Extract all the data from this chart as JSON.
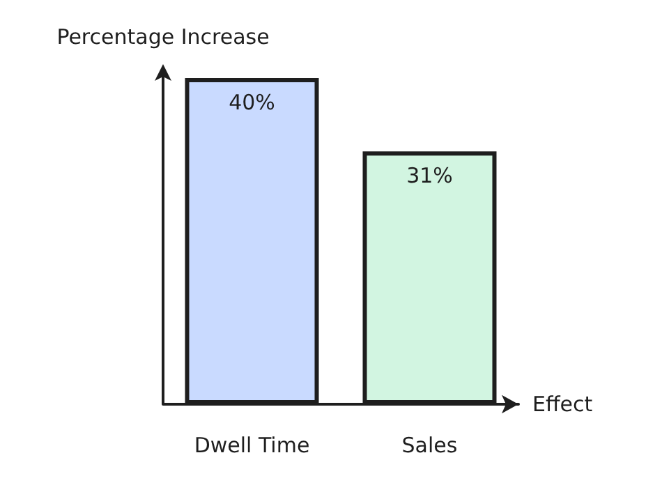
{
  "chart_data": {
    "type": "bar",
    "xlabel": "Effect",
    "ylabel": "Percentage Increase",
    "categories": [
      "Dwell Time",
      "Sales"
    ],
    "values": [
      40,
      31
    ],
    "colors": [
      "#c9daff",
      "#d2f5e1"
    ],
    "value_labels": [
      "40%",
      "31%"
    ],
    "ylim": [
      0,
      40
    ]
  }
}
